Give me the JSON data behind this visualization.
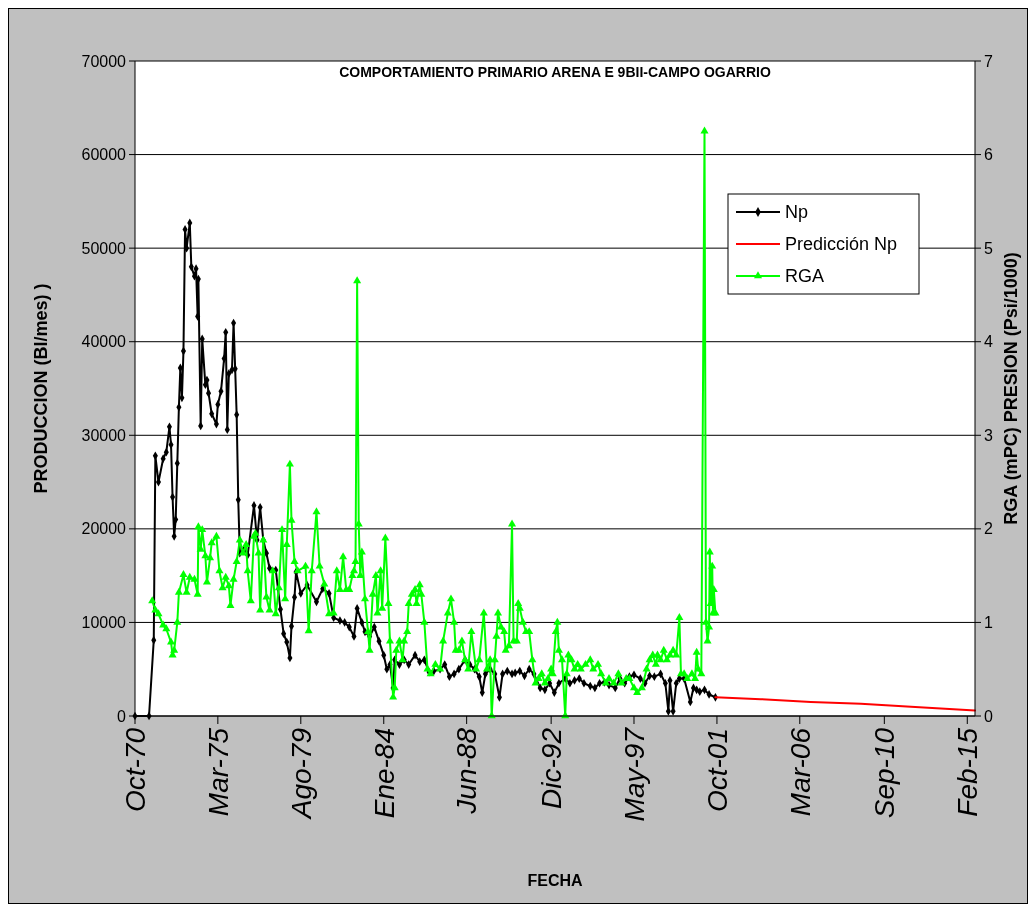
{
  "chart_data": {
    "type": "line",
    "title": "COMPORTAMIENTO PRIMARIO ARENA E 9BII-CAMPO OGARRIO",
    "xlabel": "FECHA",
    "ylabel": "PRODUCCION (Bl/mes) )",
    "y2label": "RGA (mPC) PRESION (Psi/1000)",
    "xlim": [
      "1970-10",
      "2015-07"
    ],
    "xticks": [
      {
        "value": "1970-10",
        "label": "Oct-70"
      },
      {
        "value": "1975-03",
        "label": "Mar-75"
      },
      {
        "value": "1979-08",
        "label": "Ago-79"
      },
      {
        "value": "1984-01",
        "label": "Ene-84"
      },
      {
        "value": "1988-06",
        "label": "Jun-88"
      },
      {
        "value": "1992-12",
        "label": "Dic-92"
      },
      {
        "value": "1997-05",
        "label": "May-97"
      },
      {
        "value": "2001-10",
        "label": "Oct-01"
      },
      {
        "value": "2006-03",
        "label": "Mar-06"
      },
      {
        "value": "2010-09",
        "label": "Sep-10"
      },
      {
        "value": "2015-02",
        "label": "Feb-15"
      }
    ],
    "ylim": [
      0,
      70000
    ],
    "yticks": [
      0,
      10000,
      20000,
      30000,
      40000,
      50000,
      60000,
      70000
    ],
    "y2lim": [
      0,
      7
    ],
    "y2ticks": [
      0,
      1,
      2,
      3,
      4,
      5,
      6,
      7
    ],
    "grid": "y",
    "legend": "top right",
    "series": [
      {
        "name": "Np",
        "color": "#000000",
        "marker": "diamond",
        "x": [
          "1970-10",
          "1971-07",
          "1971-10",
          "1971-11",
          "1972-01",
          "1972-04",
          "1972-06",
          "1972-08",
          "1972-09",
          "1972-10",
          "1972-11",
          "1972-12",
          "1973-01",
          "1973-02",
          "1973-03",
          "1973-04",
          "1973-05",
          "1973-06",
          "1973-07",
          "1973-09",
          "1973-10",
          "1973-12",
          "1974-01",
          "1974-02",
          "1974-02-15",
          "1974-04",
          "1974-05",
          "1974-07",
          "1974-08",
          "1974-09",
          "1974-11",
          "1975-02",
          "1975-03",
          "1975-05",
          "1975-07",
          "1975-08",
          "1975-09",
          "1975-10",
          "1975-12",
          "1976-01",
          "1976-02",
          "1976-03",
          "1976-04",
          "1976-05",
          "1976-08",
          "1976-10",
          "1977-02",
          "1977-04",
          "1977-06",
          "1977-08",
          "1977-10",
          "1977-12",
          "1978-04",
          "1978-07",
          "1978-09",
          "1978-11",
          "1979-01",
          "1979-02",
          "1979-04",
          "1979-05",
          "1979-08",
          "1979-12",
          "1980-06",
          "1980-10",
          "1981-02",
          "1981-05",
          "1981-09",
          "1981-12",
          "1982-03",
          "1982-06",
          "1982-08",
          "1982-11",
          "1983-01",
          "1983-04",
          "1983-07",
          "1983-10",
          "1984-01",
          "1984-03",
          "1984-05",
          "1984-07",
          "1984-08",
          "1984-11",
          "1985-02",
          "1985-05",
          "1985-09",
          "1985-12",
          "1986-03",
          "1986-06",
          "1986-09",
          "1987-01",
          "1987-04",
          "1987-07",
          "1987-10",
          "1988-01",
          "1988-05",
          "1988-08",
          "1988-11",
          "1989-02",
          "1989-04",
          "1989-06",
          "1989-09",
          "1989-12",
          "1990-03",
          "1990-05",
          "1990-08",
          "1990-11",
          "1991-01",
          "1991-04",
          "1991-07",
          "1991-10",
          "1992-01",
          "1992-05",
          "1992-08",
          "1992-11",
          "1993-02",
          "1993-05",
          "1993-09",
          "1993-12",
          "1994-03",
          "1994-06",
          "1994-09",
          "1995-01",
          "1995-04",
          "1995-07",
          "1995-10",
          "1996-01",
          "1996-05",
          "1996-08",
          "1996-11",
          "1997-02",
          "1997-05",
          "1997-09",
          "1997-12",
          "1998-03",
          "1998-06",
          "1998-10",
          "1999-01",
          "1999-03",
          "1999-04",
          "1999-06",
          "1999-08",
          "1999-10",
          "2000-01",
          "2000-05",
          "2000-07",
          "2000-09",
          "2000-11",
          "2001-02",
          "2001-05",
          "2001-09"
        ],
        "values": [
          0,
          0,
          8100,
          27800,
          25000,
          27500,
          28200,
          30900,
          29000,
          23400,
          19200,
          21000,
          27000,
          33000,
          37200,
          34000,
          39000,
          52000,
          50000,
          52700,
          48000,
          47000,
          47800,
          42700,
          46700,
          31000,
          40300,
          35400,
          35900,
          34500,
          32300,
          31200,
          33300,
          34700,
          38200,
          41000,
          30600,
          36600,
          37000,
          42000,
          37100,
          32200,
          23100,
          17400,
          17900,
          17200,
          22500,
          18800,
          22300,
          18800,
          17400,
          15800,
          15600,
          11400,
          8800,
          7900,
          6200,
          9600,
          12700,
          15400,
          13100,
          14000,
          12200,
          13600,
          13100,
          10500,
          10200,
          10000,
          9500,
          8500,
          11500,
          10000,
          9000,
          8500,
          9500,
          8000,
          6500,
          5000,
          5500,
          3000,
          6000,
          5500,
          6000,
          5500,
          6500,
          5800,
          6000,
          4700,
          4800,
          5000,
          5500,
          4200,
          4500,
          5000,
          6000,
          5500,
          5000,
          4200,
          2500,
          4500,
          5000,
          4500,
          2000,
          4500,
          4800,
          4500,
          4600,
          4800,
          4300,
          5000,
          4500,
          3000,
          2800,
          3500,
          2500,
          3500,
          4000,
          3500,
          3800,
          4000,
          3500,
          3200,
          3000,
          3500,
          3600,
          3300,
          3000,
          4000,
          3500,
          4200,
          4400,
          4000,
          3500,
          4300,
          4200,
          4500,
          3500,
          500,
          3800,
          500,
          3500,
          4000,
          4000,
          1500,
          3000,
          2800,
          2600,
          2800,
          2300,
          2000
        ]
      },
      {
        "name": "Predicción Np",
        "color": "#ff0000",
        "marker": "none",
        "x": [
          "2001-09",
          "2004-02",
          "2006-10",
          "2009-06",
          "2012-02",
          "2015-07"
        ],
        "values": [
          2000,
          1800,
          1500,
          1300,
          1000,
          600
        ]
      },
      {
        "name": "RGA",
        "color": "#00ff00",
        "marker": "triangle",
        "axis": "y2",
        "x": [
          "1971-09",
          "1971-11",
          "1972-01",
          "1972-04",
          "1972-06",
          "1972-09",
          "1972-10",
          "1972-11",
          "1973-01",
          "1973-02",
          "1973-05",
          "1973-07",
          "1973-09",
          "1973-12",
          "1974-02",
          "1974-02-15",
          "1974-04",
          "1974-05",
          "1974-07",
          "1974-08",
          "1974-10",
          "1974-11",
          "1975-02",
          "1975-04",
          "1975-06",
          "1975-08",
          "1975-10",
          "1975-11",
          "1976-01",
          "1976-03",
          "1976-05",
          "1976-07",
          "1976-09",
          "1976-10",
          "1976-12",
          "1977-02",
          "1977-03",
          "1977-05",
          "1977-06",
          "1977-08",
          "1977-10",
          "1977-12",
          "1978-02",
          "1978-04",
          "1978-06",
          "1978-08",
          "1978-10",
          "1978-11",
          "1979-01",
          "1979-02",
          "1979-04",
          "1979-06",
          "1979-11",
          "1980-01",
          "1980-03",
          "1980-06",
          "1980-08",
          "1980-11",
          "1981-02",
          "1981-05",
          "1981-07",
          "1981-09",
          "1981-11",
          "1982-01",
          "1982-03",
          "1982-05",
          "1982-06",
          "1982-07",
          "1982-08",
          "1982-09",
          "1982-10",
          "1982-11",
          "1983-01",
          "1983-03",
          "1983-04",
          "1983-06",
          "1983-08",
          "1983-09",
          "1983-11",
          "1983-12",
          "1984-02",
          "1984-04",
          "1984-05",
          "1984-07",
          "1984-08",
          "1984-09",
          "1984-11",
          "1985-01",
          "1985-02",
          "1985-04",
          "1985-05",
          "1985-07",
          "1985-09",
          "1985-10",
          "1985-12",
          "1986-01",
          "1986-03",
          "1986-05",
          "1986-07",
          "1986-10",
          "1987-01",
          "1987-03",
          "1987-06",
          "1987-08",
          "1987-10",
          "1987-11",
          "1988-01",
          "1988-03",
          "1988-05",
          "1988-07",
          "1988-09",
          "1988-12",
          "1989-02",
          "1989-05",
          "1989-07",
          "1989-09",
          "1989-10",
          "1989-12",
          "1990-01",
          "1990-02",
          "1990-04",
          "1990-06",
          "1990-07",
          "1990-09",
          "1990-11",
          "1990-12",
          "1991-02",
          "1991-03",
          "1991-04",
          "1991-06",
          "1991-08",
          "1991-10",
          "1991-12",
          "1992-02",
          "1992-04",
          "1992-06",
          "1992-08",
          "1992-10",
          "1992-12",
          "1993-01",
          "1993-03",
          "1993-04",
          "1993-05",
          "1993-07",
          "1993-09",
          "1993-10",
          "1993-11",
          "1994-01",
          "1994-03",
          "1994-05",
          "1994-07",
          "1994-10",
          "1995-01",
          "1995-03",
          "1995-06",
          "1995-08",
          "1995-11",
          "1996-01",
          "1996-04",
          "1996-07",
          "1996-09",
          "1996-12",
          "1997-02",
          "1997-05",
          "1997-07",
          "1997-10",
          "1998-01",
          "1998-03",
          "1998-05",
          "1998-07",
          "1998-08",
          "1998-10",
          "1998-12",
          "1999-02",
          "1999-04",
          "1999-06",
          "1999-08",
          "1999-10",
          "1999-11",
          "2000-01",
          "2000-03",
          "2000-06",
          "2000-08",
          "2000-09",
          "2000-10",
          "2000-12",
          "2001-02",
          "2001-03",
          "2001-04",
          "2001-05",
          "2001-05-15",
          "2001-06",
          "2001-07",
          "2001-07-15",
          "2001-08",
          "2001-09"
        ],
        "values": [
          1.23,
          1.13,
          1.09,
          0.97,
          0.93,
          0.79,
          0.65,
          0.7,
          1.0,
          1.32,
          1.51,
          1.32,
          1.48,
          1.46,
          1.3,
          2.02,
          1.78,
          1.99,
          1.71,
          1.43,
          1.69,
          1.85,
          1.92,
          1.55,
          1.37,
          1.48,
          1.39,
          1.18,
          1.46,
          1.65,
          1.88,
          1.74,
          1.83,
          1.55,
          1.23,
          1.92,
          1.95,
          1.74,
          1.13,
          1.88,
          1.27,
          1.13,
          1.55,
          1.09,
          1.37,
          1.99,
          1.25,
          1.83,
          2.69,
          2.09,
          1.65,
          1.55,
          1.6,
          0.91,
          1.55,
          2.18,
          1.6,
          1.41,
          1.09,
          1.1,
          1.55,
          1.35,
          1.7,
          1.35,
          1.35,
          1.5,
          1.55,
          1.65,
          4.65,
          2.05,
          1.5,
          1.75,
          1.25,
          0.9,
          0.7,
          1.3,
          1.5,
          1.1,
          1.55,
          1.15,
          1.9,
          1.2,
          0.8,
          0.2,
          0.3,
          0.7,
          0.8,
          0.6,
          0.8,
          0.9,
          1.2,
          1.3,
          1.35,
          1.2,
          1.4,
          1.3,
          1.0,
          0.5,
          0.45,
          0.55,
          0.5,
          0.8,
          1.1,
          1.25,
          1.0,
          0.7,
          0.7,
          0.8,
          0.6,
          0.5,
          0.9,
          0.5,
          0.6,
          1.1,
          0.5,
          0.6,
          0.0,
          0.6,
          0.85,
          1.1,
          0.95,
          0.9,
          0.7,
          0.75,
          2.05,
          0.8,
          0.8,
          1.2,
          1.15,
          1.0,
          0.9,
          0.9,
          0.6,
          0.35,
          0.4,
          0.45,
          0.35,
          0.4,
          0.5,
          0.45,
          0.9,
          1.0,
          0.7,
          0.6,
          0.0,
          0.45,
          0.65,
          0.6,
          0.5,
          0.55,
          0.5,
          0.55,
          0.6,
          0.5,
          0.55,
          0.45,
          0.35,
          0.4,
          0.35,
          0.45,
          0.35,
          0.4,
          0.4,
          0.3,
          0.25,
          0.3,
          0.5,
          0.6,
          0.65,
          0.55,
          0.65,
          0.6,
          0.7,
          0.6,
          0.65,
          0.7,
          0.65,
          1.05,
          0.45,
          0.45,
          0.4,
          0.45,
          0.4,
          0.68,
          0.5,
          0.45,
          6.25,
          1.0,
          0.8,
          0.95,
          1.75,
          1.2,
          1.6,
          1.1,
          1.35,
          1.1
        ]
      }
    ]
  }
}
